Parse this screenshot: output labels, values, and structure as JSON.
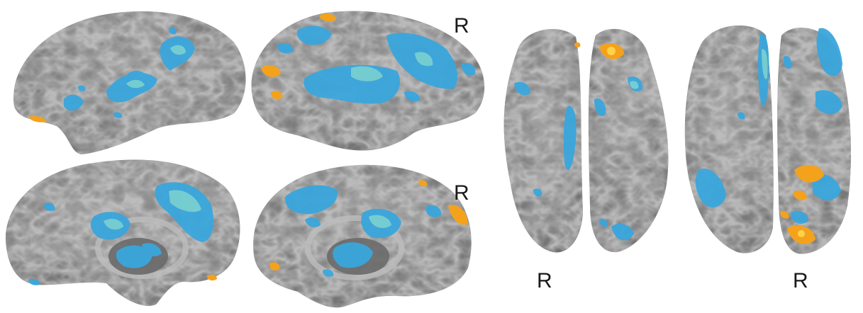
{
  "figure": {
    "hemisphere_label_lateral": "R",
    "hemisphere_label_medial": "R",
    "hemisphere_label_ventral": "R",
    "hemisphere_label_dorsal": "R"
  },
  "colors": {
    "background": "#ffffff",
    "cortex_base": "#8a8a8a",
    "cortex_dark": "#555555",
    "cortex_light": "#cfcfcf",
    "activation_blue": "#3aa6dc",
    "activation_blue_core": "#7fd3cf",
    "activation_orange": "#f4a21c",
    "activation_orange_core": "#ffd24a"
  }
}
